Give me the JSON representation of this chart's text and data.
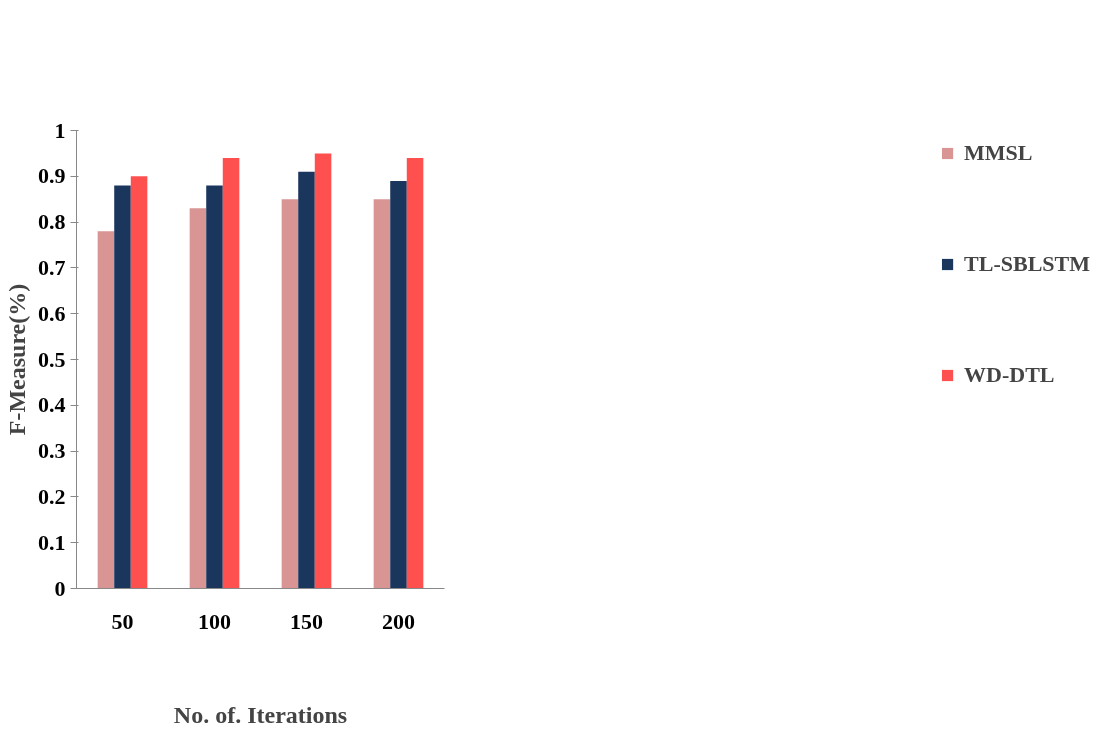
{
  "chart_data": {
    "type": "bar",
    "xlabel": "No. of. Iterations",
    "ylabel": "F-Measure(%)",
    "categories": [
      "50",
      "100",
      "150",
      "200"
    ],
    "series": [
      {
        "name": "MMSL",
        "color": "#d99594",
        "values": [
          0.78,
          0.83,
          0.85,
          0.85
        ]
      },
      {
        "name": "TL-SBLSTM",
        "color": "#1a365d",
        "values": [
          0.88,
          0.88,
          0.91,
          0.89
        ]
      },
      {
        "name": "WD-DTL",
        "color": "#ff5050",
        "values": [
          0.9,
          0.94,
          0.95,
          0.94
        ]
      }
    ],
    "ylim": [
      0,
      1
    ],
    "yticks": [
      0,
      0.1,
      0.2,
      0.3,
      0.4,
      0.5,
      0.6,
      0.7,
      0.8,
      0.9,
      1
    ],
    "grid": false,
    "legend": "right"
  }
}
